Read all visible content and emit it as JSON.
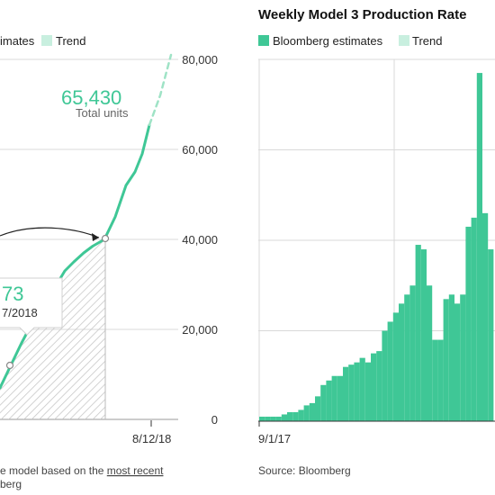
{
  "colors": {
    "estimate": "#3fc796",
    "trend": "#c8efdf",
    "grid": "#d9d9d9",
    "hatch": "#c9c9c9"
  },
  "left_panel": {
    "legend": {
      "estimates_label": "imates",
      "trend_label": "Trend"
    },
    "callout_main": {
      "value": "65,430",
      "label": "Total units"
    },
    "callout_tooltip": {
      "value": "73",
      "date": "7/2018"
    },
    "footer": {
      "line1_prefix": "e model based on the ",
      "line1_link": "most recent",
      "line2": "berg"
    }
  },
  "right_panel": {
    "title": "Weekly Model 3 Production Rate",
    "legend": {
      "estimates_label": "Bloomberg estimates",
      "trend_label": "Trend"
    },
    "source": "Source: Bloomberg"
  },
  "chart_data": [
    {
      "type": "line",
      "title": "",
      "xlabel": "",
      "ylabel": "",
      "ylim": [
        0,
        80000
      ],
      "y_ticks": [
        "0",
        "20,000",
        "40,000",
        "60,000",
        "80,000"
      ],
      "x_ticks": [
        "8/12/18"
      ],
      "series": [
        {
          "name": "Bloomberg estimates",
          "points": [
            [
              0,
              7000
            ],
            [
              12,
              12000
            ],
            [
              24,
              17000
            ],
            [
              36,
              21500
            ],
            [
              48,
              25000
            ],
            [
              60,
              29000
            ],
            [
              72,
              33000
            ],
            [
              82,
              35000
            ],
            [
              93,
              37000
            ],
            [
              103,
              38500
            ],
            [
              116,
              40000
            ],
            [
              128,
              45000
            ],
            [
              140,
              52000
            ],
            [
              150,
              55000
            ],
            [
              158,
              59000
            ],
            [
              166,
              65430
            ]
          ]
        },
        {
          "name": "Trend",
          "points": [
            [
              166,
              65430
            ],
            [
              178,
              72000
            ],
            [
              190,
              81000
            ]
          ]
        }
      ],
      "annotations": [
        "65,430",
        "Total units",
        "73",
        "7/2018"
      ]
    },
    {
      "type": "bar",
      "title": "Weekly Model 3 Production Rate",
      "x_ticks": [
        "9/1/17"
      ],
      "ylim": [
        0,
        8000
      ],
      "series": [
        {
          "name": "Bloomberg estimates",
          "values": [
            100,
            100,
            100,
            100,
            150,
            200,
            200,
            250,
            350,
            400,
            550,
            800,
            900,
            1000,
            1000,
            1200,
            1250,
            1300,
            1400,
            1300,
            1500,
            1550,
            2000,
            2200,
            2400,
            2600,
            2800,
            3000,
            3900,
            3800,
            3000,
            1800,
            1800,
            2700,
            2800,
            2600,
            2800,
            4300,
            4500,
            7700,
            4600,
            3800
          ]
        }
      ]
    }
  ]
}
